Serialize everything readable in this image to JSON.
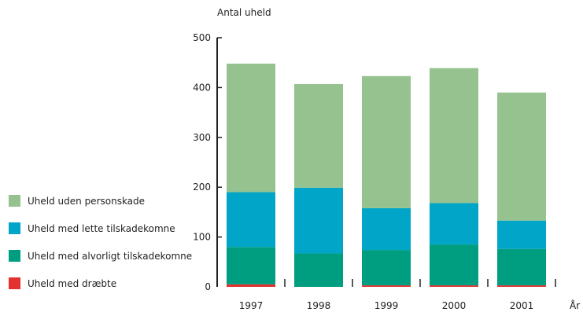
{
  "chart_data": {
    "type": "bar",
    "stacked": true,
    "ylabel": "Antal uheld",
    "xlabel": "År",
    "ylim": [
      0,
      500
    ],
    "yticks": [
      0,
      100,
      200,
      300,
      400,
      500
    ],
    "categories": [
      "1997",
      "1998",
      "1999",
      "2000",
      "2001"
    ],
    "legend_position": "left",
    "grid": false,
    "series": [
      {
        "name": "Uheld med dræbte",
        "color": "#e53030",
        "values": [
          5,
          0,
          3,
          3,
          3
        ]
      },
      {
        "name": "Uheld med alvorligt tilskadekomne",
        "color": "#009e80",
        "values": [
          75,
          67,
          71,
          82,
          73
        ]
      },
      {
        "name": "Uheld med lette tilskadekomne",
        "color": "#00a5c7",
        "values": [
          110,
          132,
          84,
          83,
          57
        ]
      },
      {
        "name": "Uheld uden personskade",
        "color": "#96c290",
        "values": [
          258,
          208,
          265,
          271,
          257
        ]
      }
    ]
  }
}
